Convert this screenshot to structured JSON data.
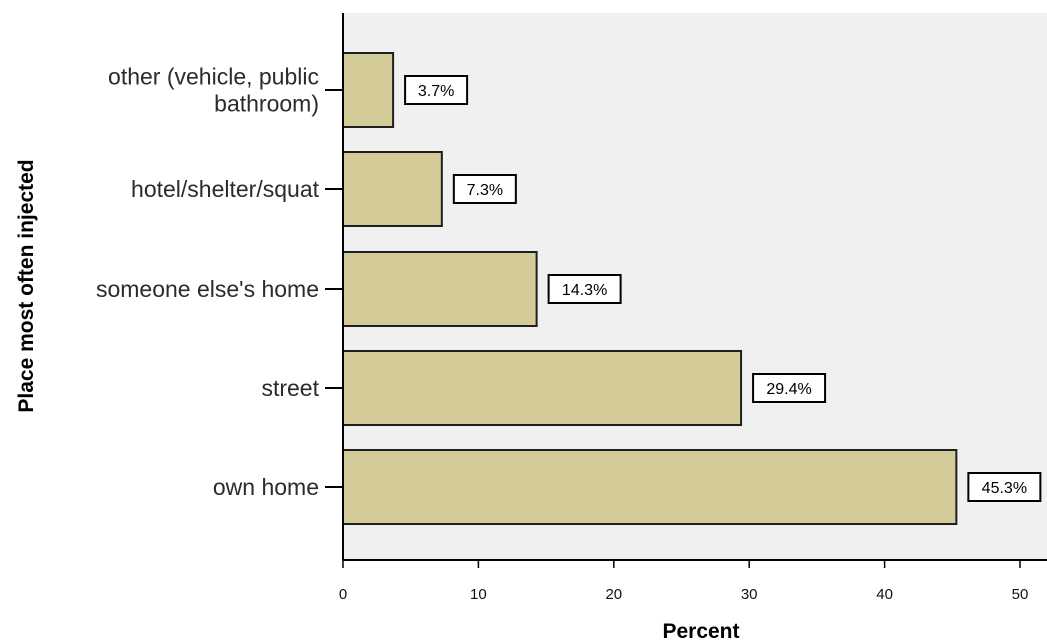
{
  "chart_data": {
    "type": "bar",
    "orientation": "horizontal",
    "categories": [
      "other (vehicle, public bathroom)",
      "hotel/shelter/squat",
      "someone else's home",
      "street",
      "own home"
    ],
    "category_label_lines": [
      [
        "other (vehicle, public",
        "bathroom)"
      ],
      [
        "hotel/shelter/squat"
      ],
      [
        "someone else's home"
      ],
      [
        "street"
      ],
      [
        "own home"
      ]
    ],
    "values": [
      3.7,
      7.3,
      14.3,
      29.4,
      45.3
    ],
    "data_labels": [
      "3.7%",
      "7.3%",
      "14.3%",
      "29.4%",
      "45.3%"
    ],
    "xlabel": "Percent",
    "ylabel": "Place most often injected",
    "xlim": [
      0,
      52
    ],
    "xticks": [
      0,
      10,
      20,
      30,
      40,
      50
    ],
    "grid": false,
    "colors": {
      "bar": "#d4cc98",
      "bar_edge": "#1f1f1f",
      "plot_bg": "#f0f0f0"
    }
  }
}
